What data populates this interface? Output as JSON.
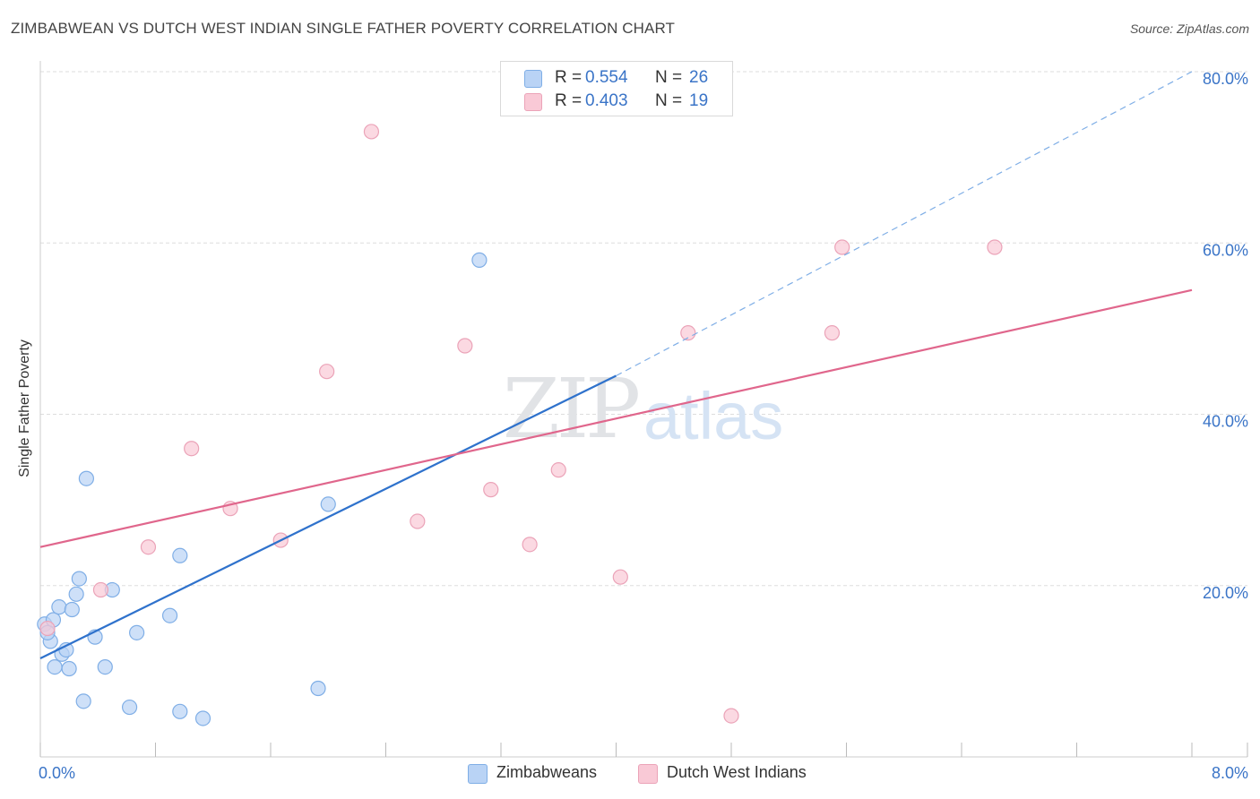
{
  "title": "ZIMBABWEAN VS DUTCH WEST INDIAN SINGLE FATHER POVERTY CORRELATION CHART",
  "source": "Source: ZipAtlas.com",
  "watermark": {
    "zip": "ZIP",
    "atlas": "atlas"
  },
  "colors": {
    "blue_fill": "#b9d3f5",
    "blue_stroke": "#7faee6",
    "blue_line": "#2f72cc",
    "pink_fill": "#f9c9d6",
    "pink_stroke": "#eba3b8",
    "pink_line": "#e0668c",
    "tick_label": "#3a74c7",
    "grid": "#dddddd"
  },
  "legend_top": [
    {
      "r_label": "R = ",
      "r_value": "0.554",
      "n_label": "N = ",
      "n_value": "26",
      "series": "blue"
    },
    {
      "r_label": "R = ",
      "r_value": "0.403",
      "n_label": "N = ",
      "n_value": "19",
      "series": "pink"
    }
  ],
  "legend_bottom": [
    {
      "label": "Zimbabweans",
      "series": "blue"
    },
    {
      "label": "Dutch West Indians",
      "series": "pink"
    }
  ],
  "chart_data": {
    "type": "scatter",
    "title": "ZIMBABWEAN VS DUTCH WEST INDIAN SINGLE FATHER POVERTY CORRELATION CHART",
    "xlabel": "",
    "ylabel": "Single Father Poverty",
    "xlim": [
      0,
      8
    ],
    "ylim": [
      0,
      80
    ],
    "x_tick_labels": [
      "0.0%",
      "8.0%"
    ],
    "y_ticks": [
      20,
      40,
      60,
      80
    ],
    "y_tick_labels": [
      "20.0%",
      "40.0%",
      "60.0%",
      "80.0%"
    ],
    "grid": true,
    "legend_position": "top-center",
    "series": [
      {
        "name": "Zimbabweans",
        "color": "#7faee6",
        "points": [
          [
            0.03,
            15.5
          ],
          [
            0.07,
            13.5
          ],
          [
            0.09,
            16.0
          ],
          [
            0.1,
            10.5
          ],
          [
            0.13,
            17.5
          ],
          [
            0.15,
            12.0
          ],
          [
            0.18,
            12.5
          ],
          [
            0.2,
            10.3
          ],
          [
            0.22,
            17.2
          ],
          [
            0.25,
            19.0
          ],
          [
            0.27,
            20.8
          ],
          [
            0.3,
            6.5
          ],
          [
            0.32,
            32.5
          ],
          [
            0.38,
            14.0
          ],
          [
            0.45,
            10.5
          ],
          [
            0.5,
            19.5
          ],
          [
            0.62,
            5.8
          ],
          [
            0.67,
            14.5
          ],
          [
            0.9,
            16.5
          ],
          [
            0.97,
            5.3
          ],
          [
            0.97,
            23.5
          ],
          [
            1.13,
            4.5
          ],
          [
            1.93,
            8.0
          ],
          [
            2.0,
            29.5
          ],
          [
            3.05,
            58.0
          ],
          [
            0.05,
            14.5
          ]
        ],
        "trendline": {
          "x": [
            0.0,
            4.0
          ],
          "y": [
            11.5,
            44.5
          ],
          "extended_to": [
            8.0,
            80.0
          ]
        }
      },
      {
        "name": "Dutch West Indians",
        "color": "#eba3b8",
        "points": [
          [
            0.05,
            15.0
          ],
          [
            0.42,
            19.5
          ],
          [
            0.75,
            24.5
          ],
          [
            1.05,
            36.0
          ],
          [
            1.32,
            29.0
          ],
          [
            1.67,
            25.3
          ],
          [
            1.99,
            45.0
          ],
          [
            2.3,
            73.0
          ],
          [
            2.62,
            27.5
          ],
          [
            2.95,
            48.0
          ],
          [
            3.13,
            31.2
          ],
          [
            3.4,
            24.8
          ],
          [
            3.6,
            33.5
          ],
          [
            4.03,
            21.0
          ],
          [
            4.5,
            49.5
          ],
          [
            4.8,
            4.8
          ],
          [
            5.5,
            49.5
          ],
          [
            5.57,
            59.5
          ],
          [
            6.63,
            59.5
          ]
        ],
        "trendline": {
          "x": [
            0.0,
            8.0
          ],
          "y": [
            24.5,
            54.5
          ]
        }
      }
    ]
  }
}
